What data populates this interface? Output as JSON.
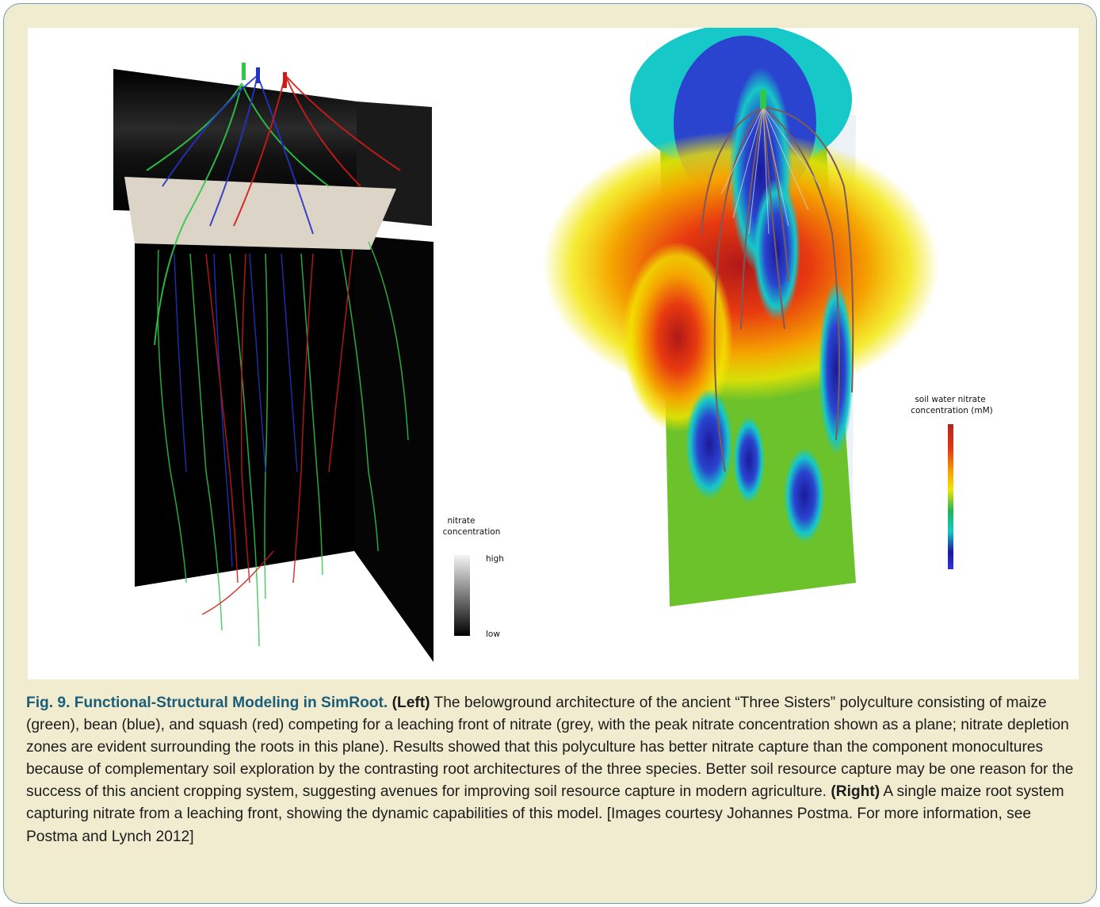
{
  "figure": {
    "caption": {
      "title": "Fig. 9. Functional-Structural Modeling in SimRoot.",
      "left_label": "(Left)",
      "left_text": "The belowground architecture of the ancient “Three Sisters” polyculture consisting of maize (green), bean (blue), and squash (red) competing for a leaching front of nitrate (grey, with the peak nitrate concentration shown as a plane; nitrate depletion zones are evident surrounding the roots in this plane). Results showed that this polyculture has better nitrate capture than the component monocultures because of complementary soil exploration by the contrasting root architectures of the three species. Better soil resource capture may be one reason for the success of this ancient cropping system, suggesting avenues for improving soil resource capture in modern agriculture.",
      "right_label": "(Right)",
      "right_text": "A single maize root system capturing nitrate from a leaching front, showing the dynamic capabilities of this model.",
      "credit": "[Images courtesy Johannes Postma. For more information, see Postma and Lynch 2012]"
    },
    "left_legend": {
      "title_line1": "nitrate",
      "title_line2": "concentration",
      "high_label": "high",
      "low_label": "low",
      "colors": [
        "#f4f4f4",
        "#000000"
      ]
    },
    "right_legend": {
      "title_line1": "soil water nitrate",
      "title_line2": "concentration (mM)",
      "colors": [
        "#b22222",
        "#e83a10",
        "#f5a300",
        "#f2e600",
        "#1fb45a",
        "#16c8c8",
        "#1a1a9a",
        "#3333dd"
      ]
    },
    "colors": {
      "maize": "#2ec84a",
      "bean": "#2433c8",
      "squash": "#d01a1a",
      "border": "#6b9fb8",
      "background": "#f1ebd0",
      "title_blue": "#1a5e7a"
    }
  }
}
